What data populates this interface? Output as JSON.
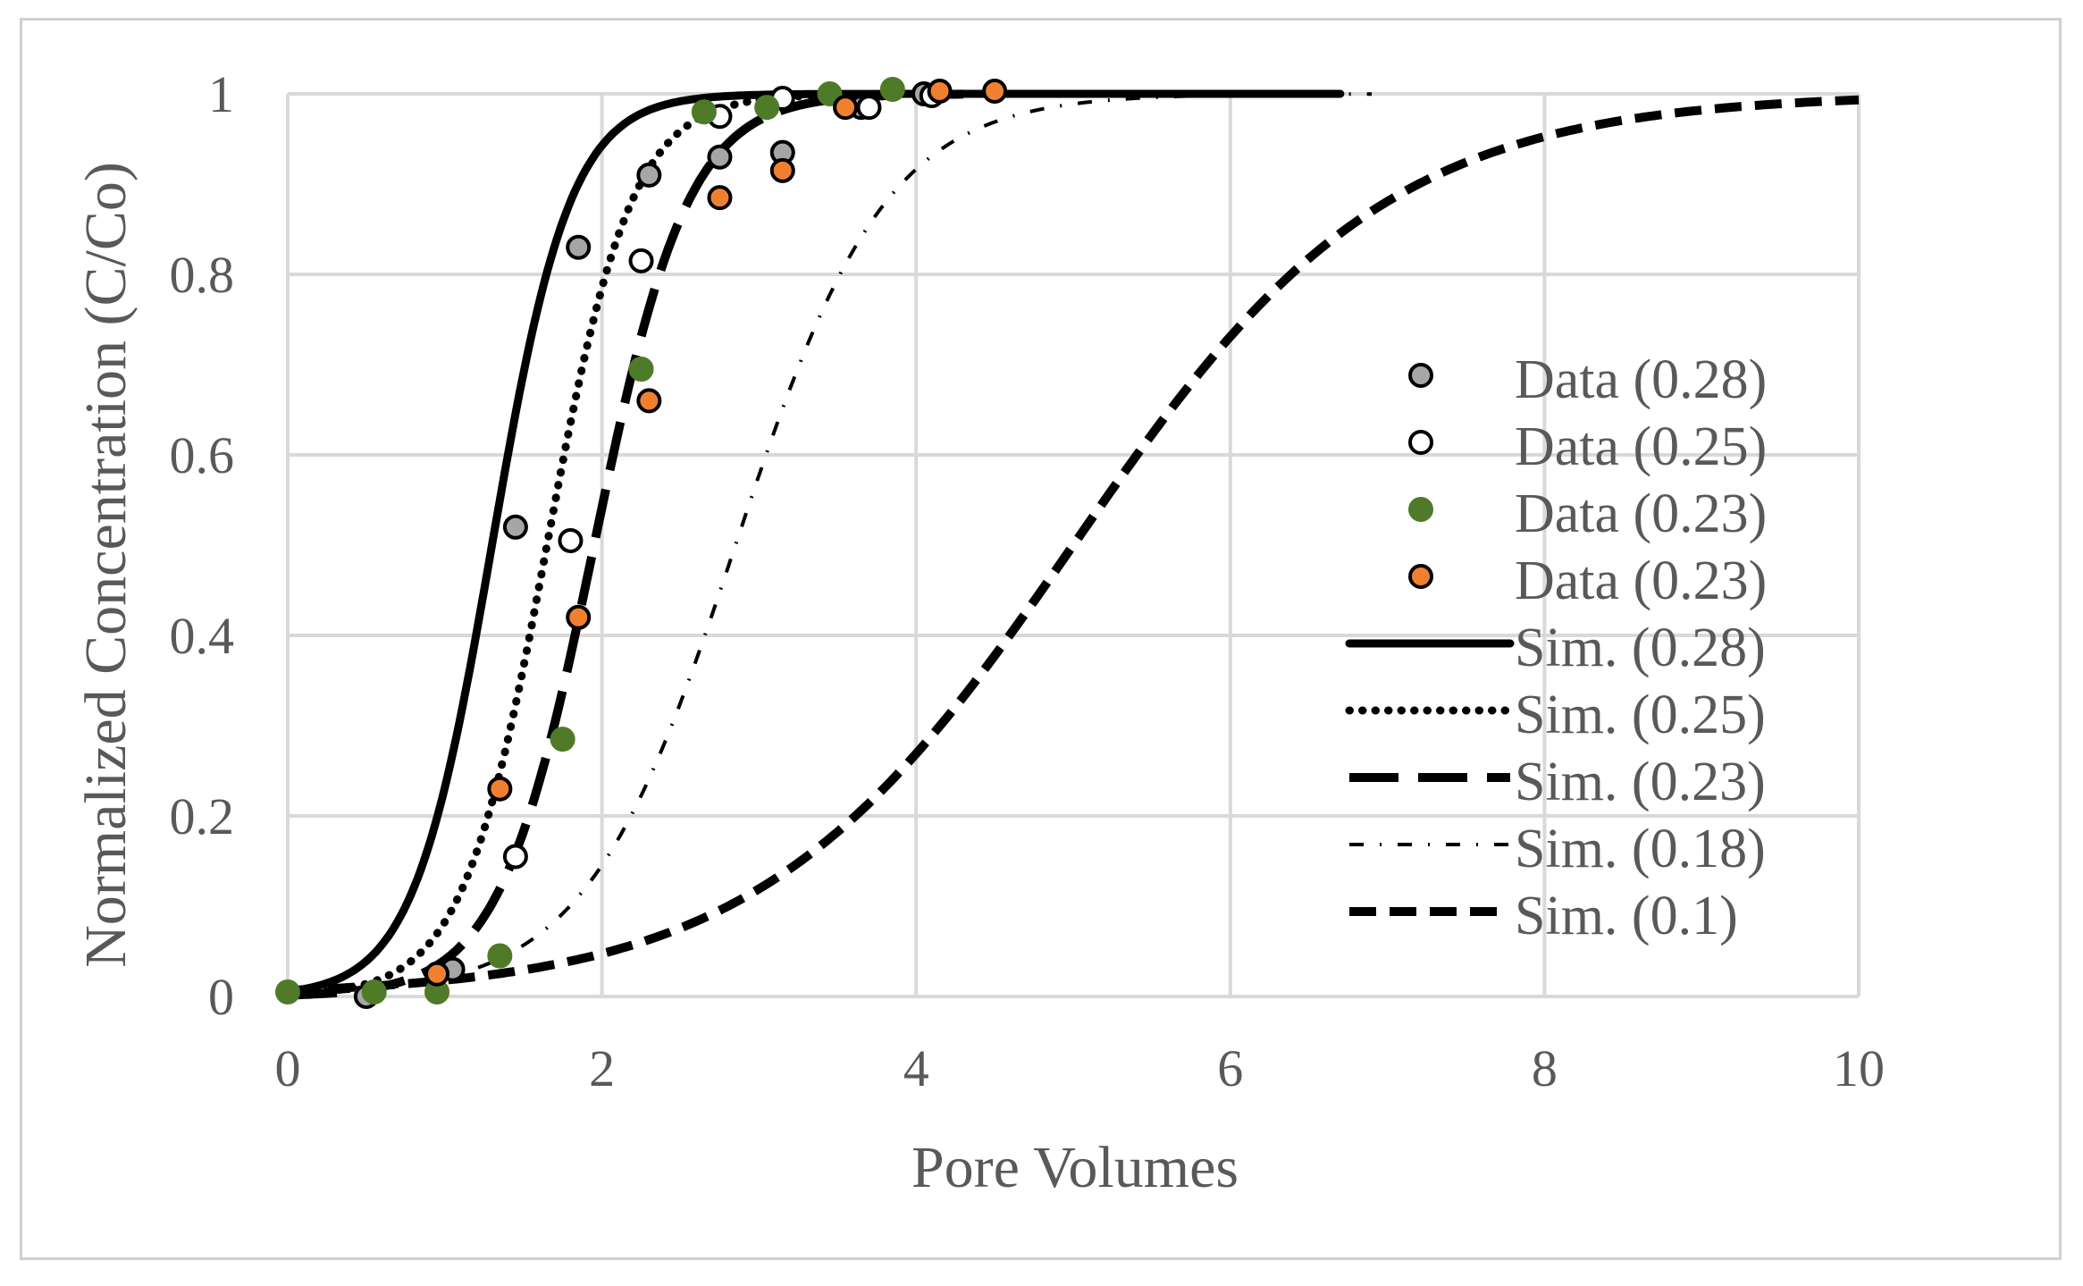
{
  "chart_data": {
    "type": "scatter",
    "title": "",
    "xlabel": "Pore Volumes",
    "ylabel": "Normalized Concentration (C/Co)",
    "xlim": [
      0,
      10
    ],
    "ylim": [
      0,
      1
    ],
    "x_ticks": [
      0,
      2,
      4,
      6,
      8,
      10
    ],
    "y_ticks": [
      0,
      0.2,
      0.4,
      0.6,
      0.8,
      1
    ],
    "x_tick_labels": [
      "0",
      "2",
      "4",
      "6",
      "8",
      "10"
    ],
    "y_tick_labels": [
      "0",
      "0.2",
      "0.4",
      "0.6",
      "0.8",
      "1"
    ],
    "grid": true,
    "legend_position": "right",
    "data_series": [
      {
        "name": "Data (0.28)",
        "fill": "#a6a6a6",
        "stroke": "#000000",
        "points": [
          [
            0.5,
            0.0
          ],
          [
            1.05,
            0.03
          ],
          [
            1.45,
            0.52
          ],
          [
            1.85,
            0.83
          ],
          [
            2.3,
            0.91
          ],
          [
            2.75,
            0.93
          ],
          [
            3.15,
            0.935
          ],
          [
            3.65,
            0.985
          ],
          [
            4.05,
            1.0
          ]
        ]
      },
      {
        "name": "Data (0.25)",
        "fill": "#ffffff",
        "stroke": "#000000",
        "points": [
          [
            1.45,
            0.155
          ],
          [
            1.8,
            0.505
          ],
          [
            2.25,
            0.815
          ],
          [
            2.75,
            0.975
          ],
          [
            3.15,
            0.995
          ],
          [
            3.7,
            0.985
          ],
          [
            4.1,
            0.998
          ]
        ]
      },
      {
        "name": "Data (0.23)",
        "fill": "#4f7a28",
        "stroke": "#4f7a28",
        "points": [
          [
            0.0,
            0.005
          ],
          [
            0.55,
            0.005
          ],
          [
            0.95,
            0.005
          ],
          [
            1.35,
            0.045
          ],
          [
            1.75,
            0.285
          ],
          [
            2.25,
            0.695
          ],
          [
            2.65,
            0.98
          ],
          [
            3.05,
            0.985
          ],
          [
            3.45,
            1.0
          ],
          [
            3.85,
            1.005
          ]
        ]
      },
      {
        "name": "Data (0.23)",
        "fill": "#f08030",
        "stroke": "#000000",
        "points": [
          [
            0.95,
            0.025
          ],
          [
            1.35,
            0.23
          ],
          [
            1.85,
            0.42
          ],
          [
            2.3,
            0.66
          ],
          [
            2.75,
            0.885
          ],
          [
            3.15,
            0.915
          ],
          [
            3.55,
            0.985
          ],
          [
            4.15,
            1.003
          ],
          [
            4.5,
            1.003
          ]
        ]
      }
    ],
    "sim_series": [
      {
        "name": "Sim. (0.28)",
        "style": "solid",
        "x0": 1.3,
        "k": 0.25,
        "xmax": 6.7
      },
      {
        "name": "Sim. (0.25)",
        "style": "dotted",
        "x0": 1.65,
        "k": 0.27,
        "xmax": 3.4
      },
      {
        "name": "Sim. (0.23)",
        "style": "long-dash",
        "x0": 1.95,
        "k": 0.3,
        "xmax": 4.3
      },
      {
        "name": "Sim. (0.18)",
        "style": "dash-dot",
        "x0": 2.85,
        "k": 0.48,
        "xmax": 6.9
      },
      {
        "name": "Sim. (0.1)",
        "style": "dashed",
        "x0": 5.0,
        "k": 1.0,
        "xmax": 10.0
      }
    ],
    "colors": {
      "grid": "#d9d9d9",
      "text": "#595959",
      "sim_line": "#000000"
    }
  }
}
